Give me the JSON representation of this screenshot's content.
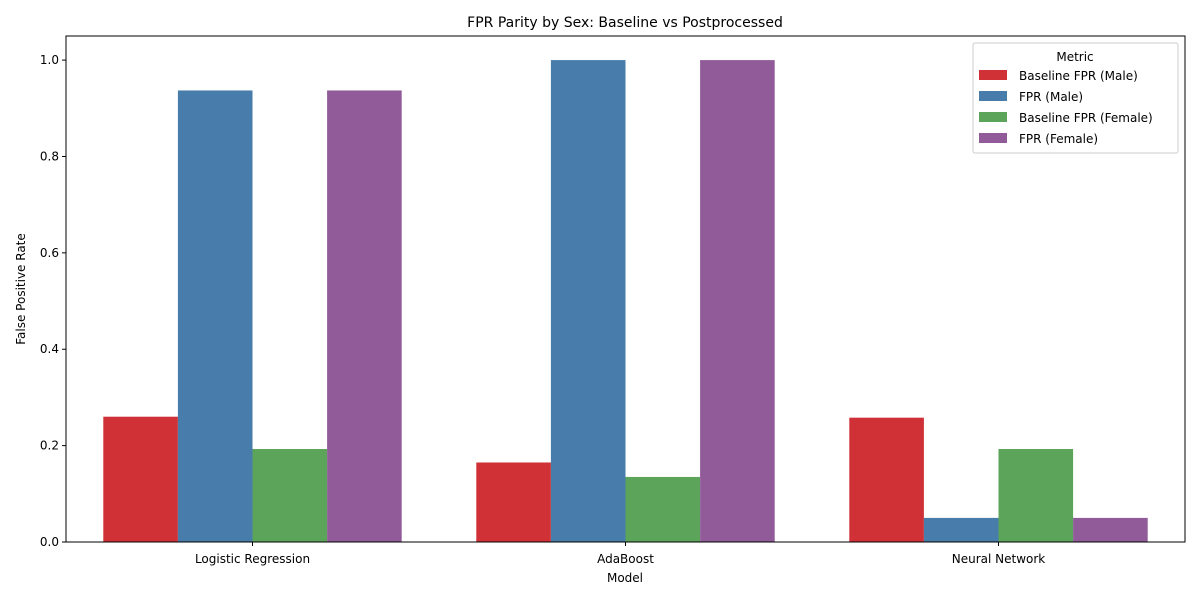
{
  "chart_data": {
    "type": "bar",
    "title": "FPR Parity by Sex: Baseline vs Postprocessed",
    "xlabel": "Model",
    "ylabel": "False Positive Rate",
    "categories": [
      "Logistic Regression",
      "AdaBoost",
      "Neural Network"
    ],
    "ylim": [
      0,
      1.05
    ],
    "yticks": [
      "0.0",
      "0.2",
      "0.4",
      "0.6",
      "0.8",
      "1.0"
    ],
    "grid": false,
    "legend": {
      "title": "Metric",
      "placement": "top-right"
    },
    "series": [
      {
        "name": "Baseline FPR (Male)",
        "color": "#d03136",
        "values": [
          0.26,
          0.165,
          0.258
        ]
      },
      {
        "name": "FPR (Male)",
        "color": "#487caa",
        "values": [
          0.937,
          1.0,
          0.05
        ]
      },
      {
        "name": "Baseline FPR (Female)",
        "color": "#5ca45a",
        "values": [
          0.193,
          0.135,
          0.193
        ]
      },
      {
        "name": "FPR (Female)",
        "color": "#915a99",
        "values": [
          0.937,
          1.0,
          0.05
        ]
      }
    ]
  }
}
